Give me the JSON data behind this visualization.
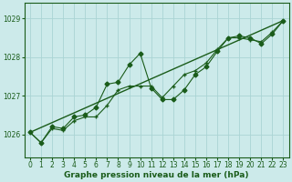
{
  "xlabel": "Graphe pression niveau de la mer (hPa)",
  "background_color": "#cceaea",
  "grid_color": "#aad4d4",
  "line_color": "#1a5c1a",
  "ylim": [
    1025.4,
    1029.4
  ],
  "xlim": [
    -0.5,
    23.5
  ],
  "yticks": [
    1026,
    1027,
    1028,
    1029
  ],
  "xticks": [
    0,
    1,
    2,
    3,
    4,
    5,
    6,
    7,
    8,
    9,
    10,
    11,
    12,
    13,
    14,
    15,
    16,
    17,
    18,
    19,
    20,
    21,
    22,
    23
  ],
  "series1_x": [
    0,
    1,
    2,
    3,
    4,
    5,
    6,
    7,
    8,
    9,
    10,
    11,
    12,
    13,
    14,
    15,
    16,
    17,
    18,
    19,
    20,
    21,
    22,
    23
  ],
  "series1_y": [
    1026.05,
    1025.78,
    1026.15,
    1026.1,
    1026.35,
    1026.45,
    1026.45,
    1026.75,
    1027.15,
    1027.25,
    1027.25,
    1027.25,
    1026.95,
    1027.25,
    1027.55,
    1027.65,
    1027.85,
    1028.2,
    1028.5,
    1028.5,
    1028.45,
    1028.4,
    1028.65,
    1028.95
  ],
  "series2_x": [
    0,
    1,
    2,
    3,
    4,
    5,
    6,
    7,
    8,
    9,
    10,
    11,
    12,
    13,
    14,
    15,
    16,
    17,
    18,
    19,
    20,
    21,
    22,
    23
  ],
  "series2_y": [
    1026.05,
    1025.78,
    1026.2,
    1026.15,
    1026.45,
    1026.5,
    1026.7,
    1027.3,
    1027.35,
    1027.8,
    1028.1,
    1027.2,
    1026.9,
    1026.9,
    1027.15,
    1027.55,
    1027.75,
    1028.15,
    1028.5,
    1028.55,
    1028.5,
    1028.35,
    1028.6,
    1028.95
  ],
  "series3_x": [
    0,
    23
  ],
  "series3_y": [
    1026.05,
    1028.95
  ]
}
